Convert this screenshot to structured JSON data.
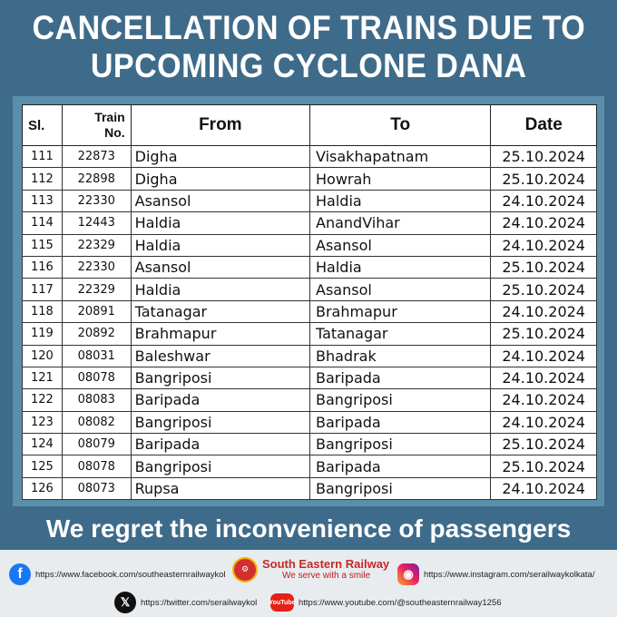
{
  "title": {
    "line1": "CANCELLATION OF TRAINS DUE TO",
    "line2": "UPCOMING CYCLONE DANA"
  },
  "table": {
    "headers": {
      "sl": "Sl.",
      "train_no_line1": "Train",
      "train_no_line2": "No.",
      "from": "From",
      "to": "To",
      "date": "Date"
    },
    "rows": [
      {
        "sl": "111",
        "train_no": "22873",
        "from": "Digha",
        "to": "Visakhapatnam",
        "date": "25.10.2024"
      },
      {
        "sl": "112",
        "train_no": "22898",
        "from": "Digha",
        "to": "Howrah",
        "date": "25.10.2024"
      },
      {
        "sl": "113",
        "train_no": "22330",
        "from": "Asansol",
        "to": "Haldia",
        "date": "24.10.2024"
      },
      {
        "sl": "114",
        "train_no": "12443",
        "from": "Haldia",
        "to": "AnandVihar",
        "date": "24.10.2024"
      },
      {
        "sl": "115",
        "train_no": "22329",
        "from": "Haldia",
        "to": "Asansol",
        "date": "24.10.2024"
      },
      {
        "sl": "116",
        "train_no": "22330",
        "from": "Asansol",
        "to": "Haldia",
        "date": "25.10.2024"
      },
      {
        "sl": "117",
        "train_no": "22329",
        "from": "Haldia",
        "to": "Asansol",
        "date": "25.10.2024"
      },
      {
        "sl": "118",
        "train_no": "20891",
        "from": "Tatanagar",
        "to": "Brahmapur",
        "date": "24.10.2024"
      },
      {
        "sl": "119",
        "train_no": "20892",
        "from": "Brahmapur",
        "to": "Tatanagar",
        "date": "25.10.2024"
      },
      {
        "sl": "120",
        "train_no": "08031",
        "from": "Baleshwar",
        "to": "Bhadrak",
        "date": "24.10.2024"
      },
      {
        "sl": "121",
        "train_no": "08078",
        "from": "Bangriposi",
        "to": "Baripada",
        "date": "24.10.2024"
      },
      {
        "sl": "122",
        "train_no": "08083",
        "from": "Baripada",
        "to": "Bangriposi",
        "date": "24.10.2024"
      },
      {
        "sl": "123",
        "train_no": "08082",
        "from": "Bangriposi",
        "to": "Baripada",
        "date": "24.10.2024"
      },
      {
        "sl": "124",
        "train_no": "08079",
        "from": "Baripada",
        "to": "Bangriposi",
        "date": "25.10.2024"
      },
      {
        "sl": "125",
        "train_no": "08078",
        "from": "Bangriposi",
        "to": "Baripada",
        "date": "25.10.2024"
      },
      {
        "sl": "126",
        "train_no": "08073",
        "from": "Rupsa",
        "to": "Bangriposi",
        "date": "24.10.2024"
      }
    ]
  },
  "regret_message": "We regret the inconvenience of passengers",
  "footer": {
    "facebook": {
      "icon": "facebook-icon",
      "url": "https://www.facebook.com/southeasternrailwaykol"
    },
    "brand": {
      "name": "South Eastern Railway",
      "tagline": "We serve with a smile"
    },
    "instagram": {
      "icon": "instagram-icon",
      "url": "https://www.instagram.com/serailwaykolkata/"
    },
    "twitter": {
      "icon": "x-icon",
      "url": "https://twitter.com/serailwaykol"
    },
    "youtube": {
      "icon": "youtube-icon",
      "label": "YouTube",
      "url": "https://www.youtube.com/@southeasternrailway1256"
    }
  },
  "colors": {
    "header_bg": "#3f6b8a",
    "panel_bg": "#5a8eab",
    "brand_red": "#c62828",
    "facebook_blue": "#1877f2"
  }
}
